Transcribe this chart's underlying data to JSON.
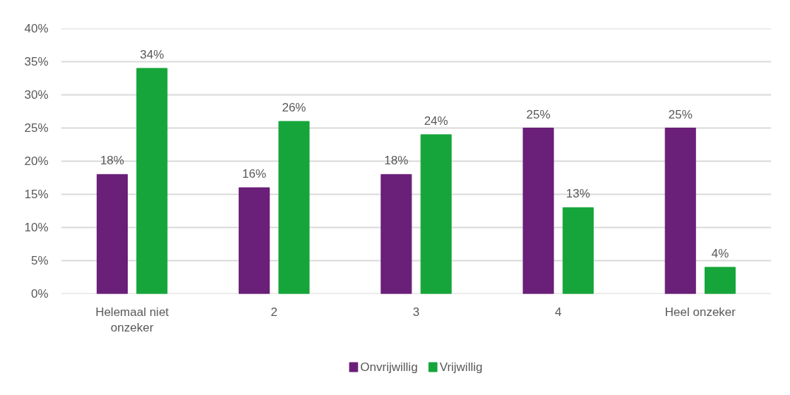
{
  "chart_data": {
    "type": "bar",
    "categories": [
      "Helemaal niet onzeker",
      "2",
      "3",
      "4",
      "Heel onzeker"
    ],
    "series": [
      {
        "name": "Onvrijwillig",
        "color": "#6a1f78",
        "values": [
          18,
          16,
          18,
          25,
          25
        ],
        "value_labels": [
          "18%",
          "16%",
          "18%",
          "25%",
          "25%"
        ]
      },
      {
        "name": "Vrijwillig",
        "color": "#16a53a",
        "values": [
          34,
          26,
          24,
          13,
          4
        ],
        "value_labels": [
          "34%",
          "26%",
          "24%",
          "13%",
          "4%"
        ]
      }
    ],
    "ylim": [
      0,
      40
    ],
    "yticks": [
      {
        "value": 0,
        "label": "0%"
      },
      {
        "value": 5,
        "label": "5%"
      },
      {
        "value": 10,
        "label": "10%"
      },
      {
        "value": 15,
        "label": "15%"
      },
      {
        "value": 20,
        "label": "20%"
      },
      {
        "value": 25,
        "label": "25%"
      },
      {
        "value": 30,
        "label": "30%"
      },
      {
        "value": 35,
        "label": "35%"
      },
      {
        "value": 40,
        "label": "40%"
      }
    ],
    "grid": "y",
    "legend": "bottom"
  }
}
